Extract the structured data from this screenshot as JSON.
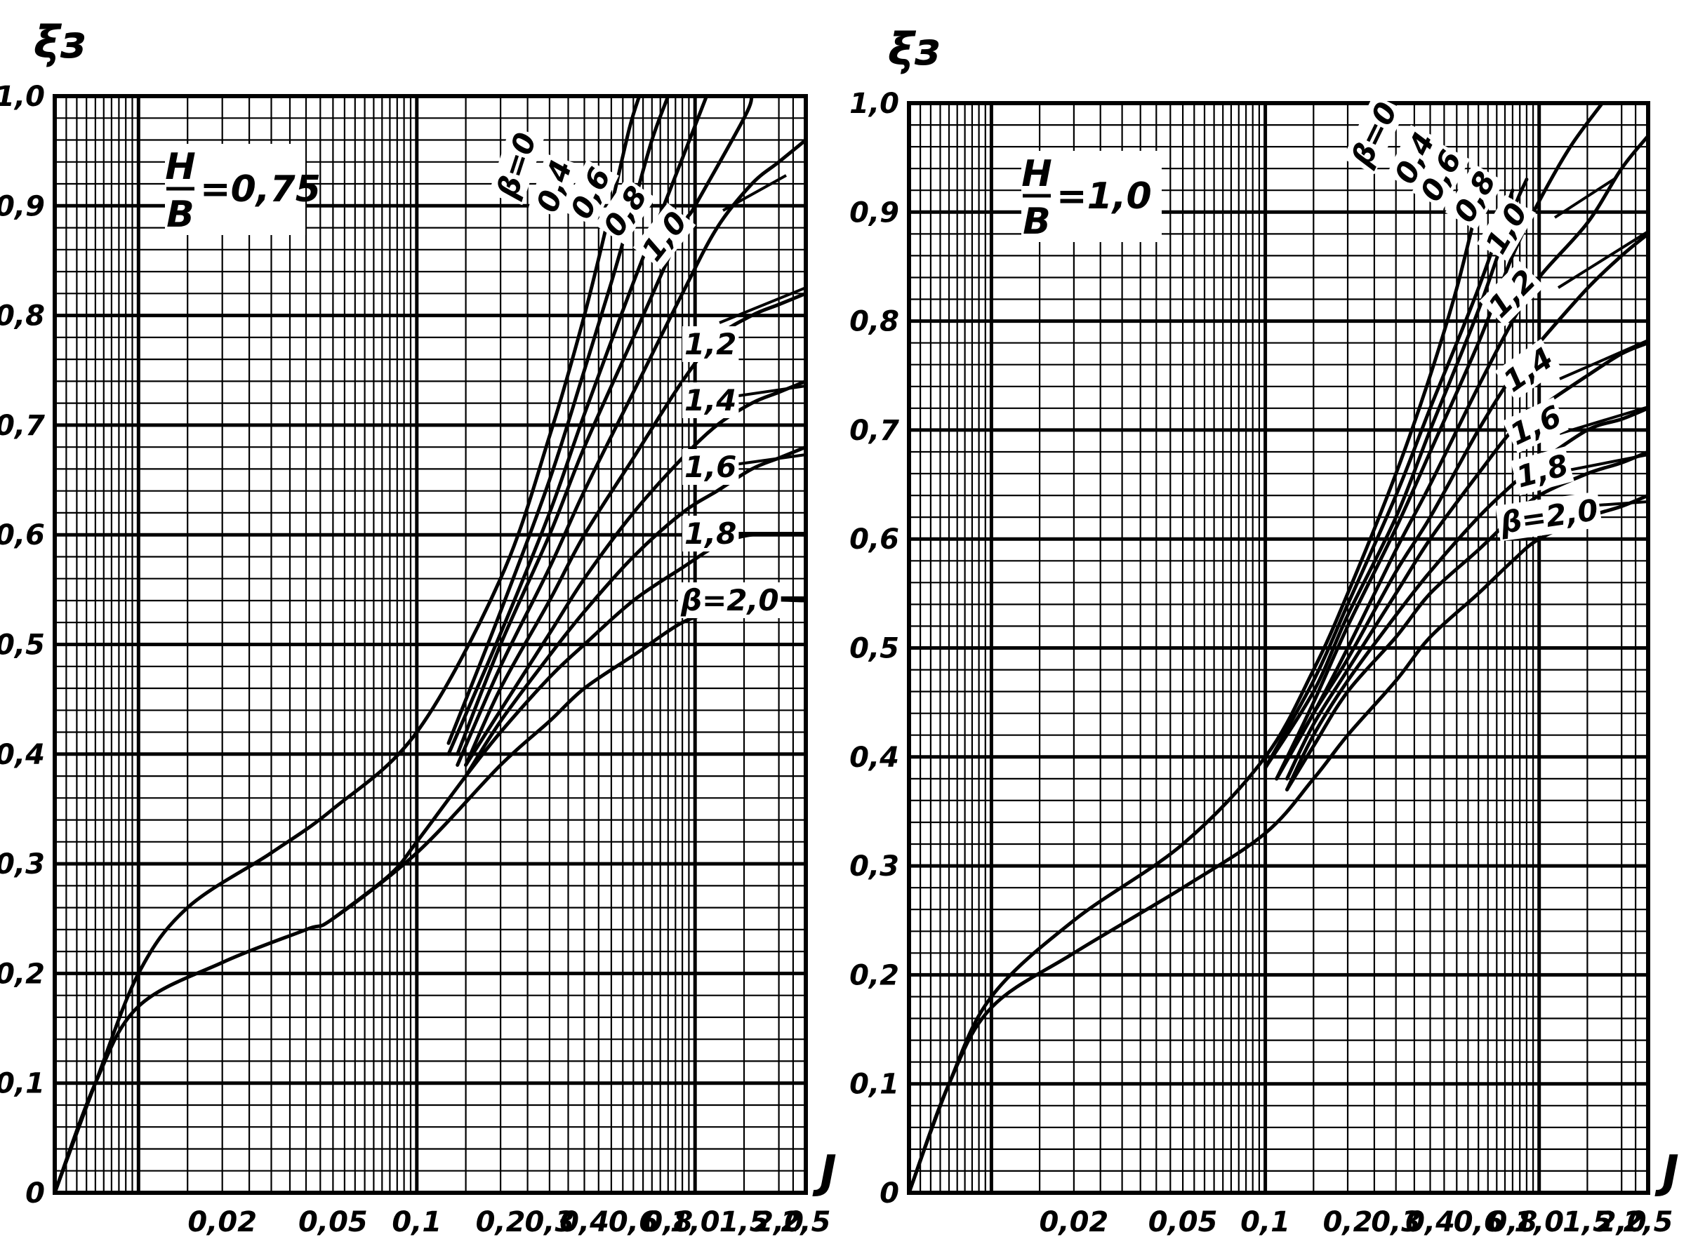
{
  "chart_data": [
    {
      "type": "line",
      "xscale": "log",
      "xlim": [
        0.005,
        2.5
      ],
      "ylim": [
        0,
        1.0
      ],
      "ylabel": "ξз",
      "xlabel": "J",
      "ratio": {
        "num": "H",
        "den": "B",
        "value": "=0,75"
      },
      "y_ticks": [
        "0",
        "0,1",
        "0,2",
        "0,3",
        "0,4",
        "0,5",
        "0,6",
        "0,7",
        "0,8",
        "0,9",
        "1,0"
      ],
      "x_ticks": [
        {
          "v": 0.02,
          "label": "0,02"
        },
        {
          "v": 0.05,
          "label": "0,05"
        },
        {
          "v": 0.1,
          "label": "0,1"
        },
        {
          "v": 0.2,
          "label": "0,2"
        },
        {
          "v": 0.3,
          "label": "0,3"
        },
        {
          "v": 0.4,
          "label": "0,4"
        },
        {
          "v": 0.6,
          "label": "0,6"
        },
        {
          "v": 0.8,
          "label": "0,8"
        },
        {
          "v": 1.0,
          "label": "1,0"
        },
        {
          "v": 1.5,
          "label": "1,5"
        },
        {
          "v": 2.0,
          "label": "2,0"
        },
        {
          "v": 2.5,
          "label": "2,5"
        }
      ],
      "series": [
        {
          "name": "β=0",
          "points": [
            [
              0.005,
              0.0
            ],
            [
              0.007,
              0.1
            ],
            [
              0.01,
              0.2
            ],
            [
              0.015,
              0.26
            ],
            [
              0.03,
              0.31
            ],
            [
              0.05,
              0.35
            ],
            [
              0.1,
              0.42
            ],
            [
              0.2,
              0.56
            ],
            [
              0.3,
              0.69
            ],
            [
              0.4,
              0.8
            ],
            [
              0.5,
              0.9
            ],
            [
              0.58,
              0.97
            ],
            [
              0.63,
              1.0
            ]
          ]
        },
        {
          "name": "0,4",
          "points": [
            [
              0.13,
              0.41
            ],
            [
              0.2,
              0.53
            ],
            [
              0.3,
              0.65
            ],
            [
              0.4,
              0.75
            ],
            [
              0.5,
              0.83
            ],
            [
              0.6,
              0.9
            ],
            [
              0.7,
              0.96
            ],
            [
              0.8,
              1.0
            ]
          ]
        },
        {
          "name": "0,6",
          "points": [
            [
              0.13,
              0.4
            ],
            [
              0.2,
              0.51
            ],
            [
              0.3,
              0.62
            ],
            [
              0.4,
              0.71
            ],
            [
              0.6,
              0.83
            ],
            [
              0.8,
              0.91
            ],
            [
              1.1,
              1.0
            ]
          ]
        },
        {
          "name": "0,8",
          "points": [
            [
              0.14,
              0.4
            ],
            [
              0.2,
              0.5
            ],
            [
              0.3,
              0.6
            ],
            [
              0.4,
              0.68
            ],
            [
              0.6,
              0.78
            ],
            [
              0.9,
              0.88
            ],
            [
              1.0,
              0.9
            ],
            [
              1.5,
              0.98
            ],
            [
              1.6,
              1.0
            ]
          ]
        },
        {
          "name": "1,0",
          "points": [
            [
              0.14,
              0.39
            ],
            [
              0.2,
              0.48
            ],
            [
              0.3,
              0.57
            ],
            [
              0.4,
              0.64
            ],
            [
              0.6,
              0.73
            ],
            [
              0.9,
              0.82
            ],
            [
              1.2,
              0.88
            ],
            [
              1.6,
              0.92
            ],
            [
              2.0,
              0.94
            ],
            [
              2.5,
              0.96
            ]
          ]
        },
        {
          "name": "1,2",
          "points": [
            [
              0.15,
              0.39
            ],
            [
              0.2,
              0.46
            ],
            [
              0.3,
              0.54
            ],
            [
              0.4,
              0.6
            ],
            [
              0.6,
              0.67
            ],
            [
              0.9,
              0.74
            ],
            [
              1.2,
              0.78
            ],
            [
              1.6,
              0.8
            ],
            [
              2.0,
              0.81
            ],
            [
              2.5,
              0.82
            ]
          ]
        },
        {
          "name": "1,4",
          "points": [
            [
              0.15,
              0.39
            ],
            [
              0.2,
              0.44
            ],
            [
              0.3,
              0.51
            ],
            [
              0.4,
              0.56
            ],
            [
              0.6,
              0.62
            ],
            [
              0.9,
              0.67
            ],
            [
              1.2,
              0.7
            ],
            [
              1.6,
              0.72
            ],
            [
              2.0,
              0.73
            ],
            [
              2.5,
              0.74
            ]
          ]
        },
        {
          "name": "1,6",
          "points": [
            [
              0.15,
              0.38
            ],
            [
              0.2,
              0.43
            ],
            [
              0.3,
              0.49
            ],
            [
              0.4,
              0.53
            ],
            [
              0.6,
              0.58
            ],
            [
              0.9,
              0.62
            ],
            [
              1.2,
              0.64
            ],
            [
              1.6,
              0.66
            ],
            [
              2.0,
              0.67
            ],
            [
              2.5,
              0.68
            ]
          ]
        },
        {
          "name": "1,8",
          "points": [
            [
              0.05,
              0.25
            ],
            [
              0.08,
              0.29
            ],
            [
              0.1,
              0.32
            ],
            [
              0.15,
              0.38
            ],
            [
              0.2,
              0.42
            ],
            [
              0.3,
              0.47
            ],
            [
              0.4,
              0.5
            ],
            [
              0.6,
              0.54
            ],
            [
              0.9,
              0.57
            ],
            [
              1.2,
              0.59
            ],
            [
              1.6,
              0.6
            ],
            [
              2.5,
              0.6
            ]
          ]
        },
        {
          "name": "β=2,0",
          "points": [
            [
              0.005,
              0.0
            ],
            [
              0.007,
              0.1
            ],
            [
              0.01,
              0.17
            ],
            [
              0.02,
              0.21
            ],
            [
              0.04,
              0.24
            ],
            [
              0.05,
              0.25
            ],
            [
              0.1,
              0.31
            ],
            [
              0.2,
              0.39
            ],
            [
              0.3,
              0.43
            ],
            [
              0.4,
              0.46
            ],
            [
              0.6,
              0.49
            ],
            [
              0.9,
              0.52
            ],
            [
              1.2,
              0.53
            ],
            [
              1.6,
              0.54
            ],
            [
              2.5,
              0.54
            ]
          ]
        }
      ]
    },
    {
      "type": "line",
      "xscale": "log",
      "xlim": [
        0.005,
        2.5
      ],
      "ylim": [
        0,
        1.0
      ],
      "ylabel": "ξз",
      "xlabel": "J",
      "ratio": {
        "num": "H",
        "den": "B",
        "value": "=1,0"
      },
      "y_ticks": [
        "0",
        "0,1",
        "0,2",
        "0,3",
        "0,4",
        "0,5",
        "0,6",
        "0,7",
        "0,8",
        "0,9",
        "1,0"
      ],
      "x_ticks": [
        {
          "v": 0.02,
          "label": "0,02"
        },
        {
          "v": 0.05,
          "label": "0,05"
        },
        {
          "v": 0.1,
          "label": "0,1"
        },
        {
          "v": 0.2,
          "label": "0,2"
        },
        {
          "v": 0.3,
          "label": "0,3"
        },
        {
          "v": 0.4,
          "label": "0,4"
        },
        {
          "v": 0.6,
          "label": "0,6"
        },
        {
          "v": 0.8,
          "label": "0,8"
        },
        {
          "v": 1.0,
          "label": "1,0"
        },
        {
          "v": 1.5,
          "label": "1,5"
        },
        {
          "v": 2.0,
          "label": "2,0"
        },
        {
          "v": 2.5,
          "label": "2,5"
        }
      ],
      "series": [
        {
          "name": "β=0",
          "points": [
            [
              0.005,
              0.0
            ],
            [
              0.007,
              0.1
            ],
            [
              0.01,
              0.18
            ],
            [
              0.02,
              0.25
            ],
            [
              0.05,
              0.32
            ],
            [
              0.1,
              0.4
            ],
            [
              0.15,
              0.48
            ],
            [
              0.2,
              0.55
            ],
            [
              0.3,
              0.66
            ],
            [
              0.4,
              0.75
            ],
            [
              0.5,
              0.83
            ],
            [
              0.6,
              0.91
            ]
          ]
        },
        {
          "name": "0,4",
          "points": [
            [
              0.1,
              0.39
            ],
            [
              0.15,
              0.47
            ],
            [
              0.2,
              0.54
            ],
            [
              0.3,
              0.64
            ],
            [
              0.4,
              0.72
            ],
            [
              0.6,
              0.83
            ],
            [
              0.8,
              0.92
            ]
          ]
        },
        {
          "name": "0,6",
          "points": [
            [
              0.1,
              0.39
            ],
            [
              0.15,
              0.46
            ],
            [
              0.2,
              0.53
            ],
            [
              0.3,
              0.62
            ],
            [
              0.4,
              0.7
            ],
            [
              0.6,
              0.81
            ],
            [
              0.8,
              0.9
            ],
            [
              0.9,
              0.93
            ]
          ]
        },
        {
          "name": "0,8",
          "points": [
            [
              0.11,
              0.38
            ],
            [
              0.15,
              0.45
            ],
            [
              0.2,
              0.52
            ],
            [
              0.3,
              0.61
            ],
            [
              0.4,
              0.68
            ],
            [
              0.6,
              0.78
            ],
            [
              0.8,
              0.86
            ],
            [
              1.0,
              0.91
            ],
            [
              1.3,
              0.96
            ],
            [
              1.7,
              1.0
            ]
          ]
        },
        {
          "name": "1,0",
          "points": [
            [
              0.11,
              0.38
            ],
            [
              0.15,
              0.44
            ],
            [
              0.2,
              0.5
            ],
            [
              0.3,
              0.59
            ],
            [
              0.4,
              0.65
            ],
            [
              0.6,
              0.74
            ],
            [
              0.8,
              0.8
            ],
            [
              1.0,
              0.84
            ],
            [
              1.5,
              0.89
            ],
            [
              2.0,
              0.94
            ],
            [
              2.5,
              0.97
            ]
          ]
        },
        {
          "name": "1,2",
          "points": [
            [
              0.11,
              0.38
            ],
            [
              0.15,
              0.44
            ],
            [
              0.2,
              0.49
            ],
            [
              0.3,
              0.57
            ],
            [
              0.4,
              0.62
            ],
            [
              0.6,
              0.7
            ],
            [
              0.8,
              0.75
            ],
            [
              1.0,
              0.78
            ],
            [
              1.5,
              0.83
            ],
            [
              2.0,
              0.86
            ],
            [
              2.5,
              0.88
            ]
          ]
        },
        {
          "name": "1,4",
          "points": [
            [
              0.12,
              0.38
            ],
            [
              0.15,
              0.43
            ],
            [
              0.2,
              0.48
            ],
            [
              0.3,
              0.55
            ],
            [
              0.4,
              0.6
            ],
            [
              0.6,
              0.66
            ],
            [
              0.8,
              0.7
            ],
            [
              1.0,
              0.72
            ],
            [
              1.5,
              0.75
            ],
            [
              2.0,
              0.77
            ],
            [
              2.5,
              0.78
            ]
          ]
        },
        {
          "name": "1,6",
          "points": [
            [
              0.12,
              0.37
            ],
            [
              0.15,
              0.42
            ],
            [
              0.2,
              0.47
            ],
            [
              0.3,
              0.53
            ],
            [
              0.4,
              0.57
            ],
            [
              0.6,
              0.62
            ],
            [
              0.8,
              0.65
            ],
            [
              1.0,
              0.67
            ],
            [
              1.5,
              0.7
            ],
            [
              2.0,
              0.71
            ],
            [
              2.5,
              0.72
            ]
          ]
        },
        {
          "name": "1,8",
          "points": [
            [
              0.12,
              0.37
            ],
            [
              0.15,
              0.41
            ],
            [
              0.2,
              0.46
            ],
            [
              0.3,
              0.51
            ],
            [
              0.4,
              0.55
            ],
            [
              0.6,
              0.59
            ],
            [
              0.8,
              0.62
            ],
            [
              1.0,
              0.64
            ],
            [
              1.5,
              0.66
            ],
            [
              2.0,
              0.67
            ],
            [
              2.5,
              0.68
            ]
          ]
        },
        {
          "name": "β=2,0",
          "points": [
            [
              0.005,
              0.0
            ],
            [
              0.007,
              0.1
            ],
            [
              0.01,
              0.17
            ],
            [
              0.02,
              0.22
            ],
            [
              0.05,
              0.28
            ],
            [
              0.1,
              0.33
            ],
            [
              0.15,
              0.38
            ],
            [
              0.2,
              0.42
            ],
            [
              0.3,
              0.47
            ],
            [
              0.4,
              0.51
            ],
            [
              0.6,
              0.55
            ],
            [
              0.8,
              0.58
            ],
            [
              1.0,
              0.6
            ],
            [
              1.5,
              0.62
            ],
            [
              2.0,
              0.63
            ],
            [
              2.5,
              0.64
            ]
          ]
        }
      ]
    }
  ]
}
